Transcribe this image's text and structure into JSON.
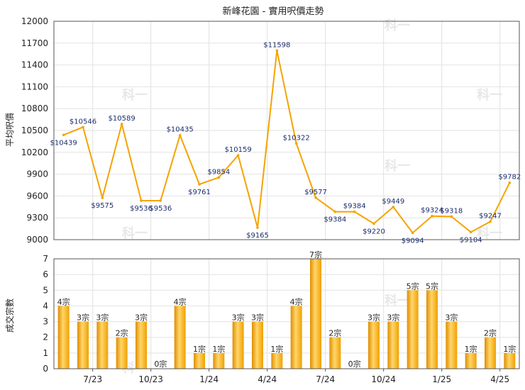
{
  "chart_data": [
    {
      "type": "line",
      "title": "新峰花園 - 實用呎價走勢",
      "ylabel": "平均呎價",
      "ylim": [
        9000,
        12000
      ],
      "yticks": [
        9000,
        9300,
        9600,
        9900,
        10200,
        10500,
        10800,
        11100,
        11400,
        11700,
        12000
      ],
      "value_prefix": "$",
      "series_color": "#f5a300",
      "grid": true,
      "values": [
        10439,
        10546,
        9575,
        10589,
        9536,
        9536,
        10435,
        9761,
        9854,
        10159,
        9165,
        11598,
        10322,
        9577,
        9384,
        9384,
        9220,
        9449,
        9094,
        9324,
        9318,
        9104,
        9247,
        9782
      ]
    },
    {
      "type": "bar",
      "ylabel": "成交宗數",
      "ylim": [
        0,
        7
      ],
      "yticks": [
        0,
        1,
        2,
        3,
        4,
        5,
        6,
        7
      ],
      "label_suffix": "宗",
      "bar_color": "#f5a300",
      "grid": true,
      "values": [
        4,
        3,
        3,
        2,
        3,
        0,
        4,
        1,
        1,
        3,
        3,
        1,
        4,
        7,
        2,
        0,
        3,
        3,
        5,
        5,
        3,
        1,
        2,
        1
      ]
    }
  ],
  "x_axis": {
    "tick_labels": [
      "7/23",
      "10/23",
      "1/24",
      "4/24",
      "7/24",
      "10/24",
      "1/25",
      "4/25"
    ]
  },
  "watermark": "科一"
}
